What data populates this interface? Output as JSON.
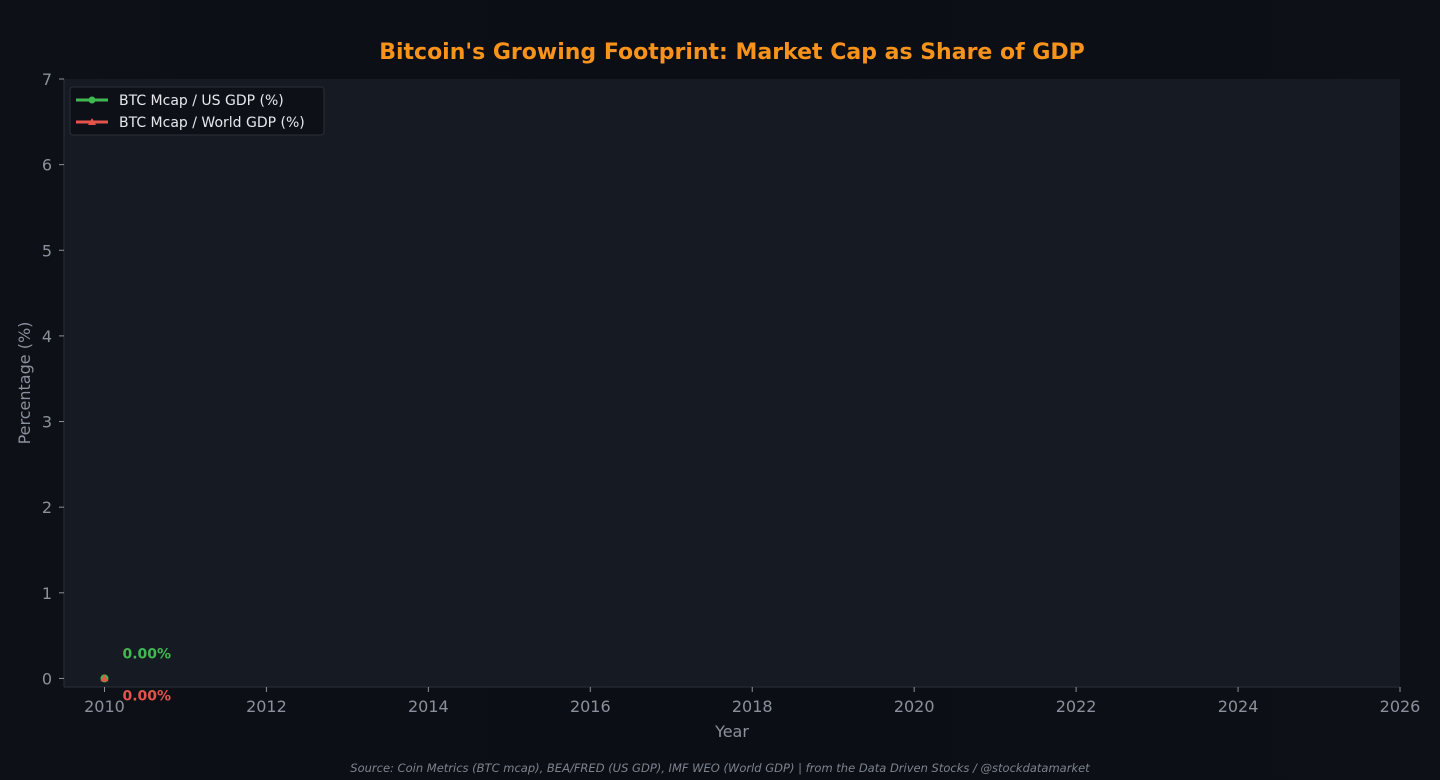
{
  "chart_data": {
    "type": "line",
    "title": "Bitcoin's Growing Footprint: Market Cap as Share of GDP",
    "xlabel": "Year",
    "ylabel": "Percentage (%)",
    "xlim": [
      2009.5,
      2026
    ],
    "ylim": [
      -0.1,
      7
    ],
    "x_ticks": [
      2010,
      2012,
      2014,
      2016,
      2018,
      2020,
      2022,
      2024,
      2026
    ],
    "y_ticks": [
      0,
      1,
      2,
      3,
      4,
      5,
      6,
      7
    ],
    "grid": false,
    "legend_position": "top-left",
    "series": [
      {
        "name": "BTC Mcap / US GDP (%)",
        "color": "#3fb950",
        "marker": "circle",
        "x": [
          2010
        ],
        "y": [
          0.0
        ],
        "end_label": "0.00%"
      },
      {
        "name": "BTC Mcap / World GDP (%)",
        "color": "#e5534b",
        "marker": "triangle",
        "x": [
          2010
        ],
        "y": [
          0.0
        ],
        "end_label": "0.00%"
      }
    ]
  },
  "colors": {
    "background": "#0d1017",
    "plot_background": "#161a22",
    "title": "#f7931a",
    "axis_text": "#8b919c"
  },
  "source": "Source: Coin Metrics (BTC mcap), BEA/FRED (US GDP), IMF WEO (World GDP) | from the Data Driven Stocks / @stockdatamarket"
}
